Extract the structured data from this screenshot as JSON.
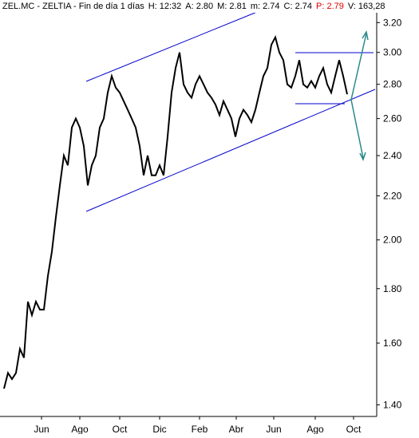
{
  "chart_data": {
    "type": "line",
    "header": [
      "ZEL.MC - ZELTIA - Fin de día 1 días",
      "H: 12:32",
      "A: 2.80",
      "M: 2.81",
      "m: 2.74",
      "C: 2.74",
      "P: 2.79",
      "V: 163,28"
    ],
    "log_scale": true,
    "xlim": [
      -1,
      93
    ],
    "xticks": [
      {
        "value": 9.4,
        "label": "Jun"
      },
      {
        "value": 19,
        "label": "Ago"
      },
      {
        "value": 29,
        "label": "Oct"
      },
      {
        "value": 39,
        "label": "Dic"
      },
      {
        "value": 49,
        "label": "Feb"
      },
      {
        "value": 58.2,
        "label": "Abr"
      },
      {
        "value": 67.6,
        "label": "Jun"
      },
      {
        "value": 78,
        "label": "Ago"
      },
      {
        "value": 87.6,
        "label": "Oct"
      }
    ],
    "ylim": [
      1.37,
      3.36
    ],
    "yticks": [
      {
        "value": 1.4,
        "label": "1.40"
      },
      {
        "value": 1.6,
        "label": "1.60"
      },
      {
        "value": 1.8,
        "label": "1.80"
      },
      {
        "value": 2.0,
        "label": "2.00"
      },
      {
        "value": 2.2,
        "label": "2.20"
      },
      {
        "value": 2.4,
        "label": "2.40"
      },
      {
        "value": 2.6,
        "label": "2.60"
      },
      {
        "value": 2.8,
        "label": "2.80"
      },
      {
        "value": 3.0,
        "label": "3.00"
      },
      {
        "value": 3.2,
        "label": "3.20"
      }
    ],
    "series": [
      {
        "name": "ZEL.MC",
        "color": "#000000",
        "values": [
          1.45,
          1.5,
          1.48,
          1.5,
          1.58,
          1.55,
          1.75,
          1.7,
          1.75,
          1.72,
          1.72,
          1.85,
          1.95,
          2.1,
          2.25,
          2.4,
          2.35,
          2.55,
          2.6,
          2.55,
          2.45,
          2.25,
          2.35,
          2.4,
          2.55,
          2.6,
          2.75,
          2.85,
          2.78,
          2.75,
          2.7,
          2.65,
          2.6,
          2.55,
          2.45,
          2.3,
          2.4,
          2.3,
          2.3,
          2.35,
          2.3,
          2.5,
          2.75,
          2.9,
          3.0,
          2.8,
          2.75,
          2.72,
          2.8,
          2.85,
          2.8,
          2.75,
          2.72,
          2.68,
          2.62,
          2.7,
          2.65,
          2.6,
          2.5,
          2.6,
          2.65,
          2.62,
          2.58,
          2.65,
          2.75,
          2.85,
          2.9,
          3.05,
          3.1,
          3.0,
          2.95,
          2.8,
          2.78,
          2.85,
          2.95,
          2.8,
          2.78,
          2.82,
          2.78,
          2.85,
          2.9,
          2.8,
          2.75,
          2.85,
          2.95,
          2.85,
          2.74
        ]
      }
    ]
  }
}
